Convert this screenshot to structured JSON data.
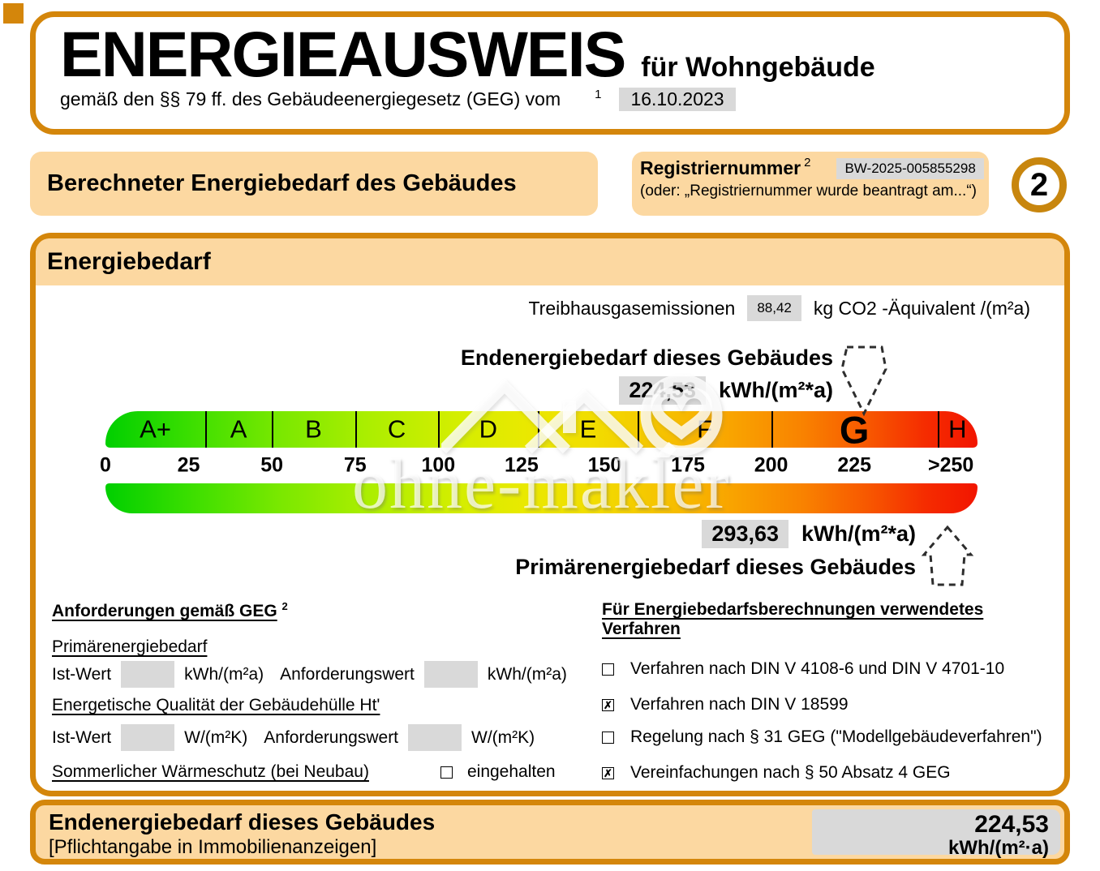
{
  "header": {
    "title": "ENERGIEAUSWEIS",
    "subtitle": "für Wohngebäude",
    "law_line": "gemäß den §§ 79 ff. des Gebäudeenergiegesetz (GEG) vom",
    "law_sup": "1",
    "date": "16.10.2023"
  },
  "banner": {
    "title": "Berechneter Energiebedarf des Gebäudes",
    "reg_label": "Registriernummer",
    "reg_sup": "2",
    "reg_number": "BW-2025-005855298",
    "reg_alt": "(oder: „Registriernummer wurde beantragt am...“)",
    "page_number": "2"
  },
  "panel": {
    "title": "Energiebedarf",
    "ghg_label": "Treibhausgasemissionen",
    "ghg_value": "88,42",
    "ghg_unit": "kg CO2 -Äquivalent /(m²a)",
    "end_label": "Endenergiebedarf dieses Gebäudes",
    "end_value": "224,53",
    "end_unit": "kWh/(m²*a)",
    "primary_value": "293,63",
    "primary_unit": "kWh/(m²*a)",
    "primary_label": "Primärenergiebedarf dieses Gebäudes",
    "watermark_text": "ohne-makler"
  },
  "scale": {
    "max": 262,
    "classes": [
      {
        "label": "A+",
        "from": 0,
        "to": 30
      },
      {
        "label": "A",
        "from": 30,
        "to": 50
      },
      {
        "label": "B",
        "from": 50,
        "to": 75
      },
      {
        "label": "C",
        "from": 75,
        "to": 100
      },
      {
        "label": "D",
        "from": 100,
        "to": 130
      },
      {
        "label": "E",
        "from": 130,
        "to": 160
      },
      {
        "label": "F",
        "from": 160,
        "to": 200
      },
      {
        "label": "G",
        "from": 200,
        "to": 250,
        "current": true
      },
      {
        "label": "H",
        "from": 250,
        "to": 262
      }
    ],
    "ticks": [
      {
        "label": "0",
        "value": 0
      },
      {
        "label": "25",
        "value": 25
      },
      {
        "label": "50",
        "value": 50
      },
      {
        "label": "75",
        "value": 75
      },
      {
        "label": "100",
        "value": 100
      },
      {
        "label": "125",
        "value": 125
      },
      {
        "label": "150",
        "value": 150
      },
      {
        "label": "175",
        "value": 175
      },
      {
        "label": "200",
        "value": 200
      },
      {
        "label": "225",
        "value": 225
      },
      {
        "label": ">250",
        "value": 254
      }
    ],
    "end_marker_value": 228,
    "primary_marker_value": 253
  },
  "requirements": {
    "heading": "Anforderungen gemäß GEG",
    "heading_sup": "2",
    "primary_heading": "Primärenergiebedarf",
    "ist_label": "Ist-Wert",
    "anf_label": "Anforderungswert",
    "unit_kwh": "kWh/(m²a)",
    "envelope_heading": "Energetische Qualität der Gebäudehülle Ht'",
    "unit_w": "W/(m²K)",
    "summer_heading": "Sommerlicher Wärmeschutz (bei Neubau)",
    "summer_mark": "",
    "summer_label": "eingehalten"
  },
  "methods": {
    "heading": "Für Energiebedarfsberechnungen verwendetes Verfahren",
    "items": [
      {
        "mark": "",
        "label": "Verfahren nach DIN V 4108-6 und DIN V 4701-10"
      },
      {
        "mark": "✗",
        "label": "Verfahren nach DIN V 18599"
      },
      {
        "mark": "",
        "label": "Regelung nach § 31 GEG (\"Modellgebäudeverfahren\")"
      },
      {
        "mark": "✗",
        "label": "Vereinfachungen nach § 50 Absatz 4 GEG"
      }
    ]
  },
  "footer": {
    "title": "Endenergiebedarf dieses Gebäudes",
    "subtitle": "[Pflichtangabe in Immobilienanzeigen]",
    "value": "224,53",
    "unit": "kWh/(m²·a)"
  },
  "colors": {
    "border_orange": "#d4860b",
    "fill_orange": "#fcd8a1",
    "badge_ring": "#c8860e",
    "box_gray": "#d9d9d9",
    "scale_green": "#00cf00",
    "scale_red": "#f21500"
  }
}
